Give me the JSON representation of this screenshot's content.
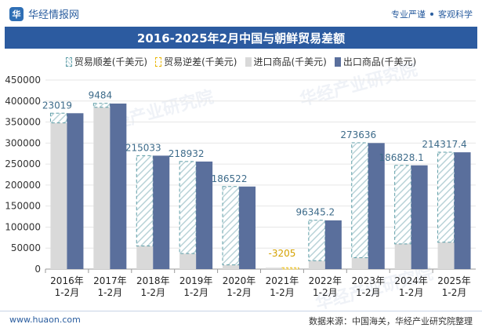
{
  "header": {
    "brand": "华经情报网",
    "logo_text": "华",
    "tags": [
      "专业严谨",
      "客观科学"
    ]
  },
  "watermark": "华经产业研究院",
  "chart_data": {
    "type": "bar",
    "title": "2016-2025年2月中国与朝鲜贸易差额",
    "categories": [
      "2016年\n1-2月",
      "2017年\n1-2月",
      "2018年\n1-2月",
      "2019年\n1-2月",
      "2020年\n1-2月",
      "2021年\n1-2月",
      "2022年\n1-2月",
      "2023年\n1-2月",
      "2024年\n1-2月",
      "2025年\n1-2月"
    ],
    "series": [
      {
        "name": "贸易顺差(千美元)",
        "values": [
          23019,
          9484,
          215033,
          218932,
          186522,
          null,
          96345.2,
          273636,
          186828.1,
          214317.4
        ],
        "labels": [
          "23019",
          "9484",
          "215033",
          "218932",
          "186522",
          "",
          "96345.2",
          "273636",
          "186828.1",
          "214317.4"
        ],
        "color": "#5f9ea7"
      },
      {
        "name": "贸易逆差(千美元)",
        "values": [
          null,
          null,
          null,
          null,
          null,
          3205,
          null,
          null,
          null,
          null
        ],
        "labels": [
          "",
          "",
          "",
          "",
          "",
          "-3205",
          "",
          "",
          "",
          ""
        ],
        "color": "#e8b500"
      },
      {
        "name": "进口商品(千美元)",
        "values": [
          348000,
          385000,
          55000,
          37000,
          10000,
          3300,
          20000,
          27000,
          60000,
          64000
        ],
        "color": "#d9d9d9"
      },
      {
        "name": "出口商品(千美元)",
        "values": [
          371000,
          394000,
          270000,
          256000,
          196500,
          100,
          116000,
          300000,
          247000,
          278000
        ],
        "color": "#5a6f9c"
      }
    ],
    "ylim": [
      0,
      450000
    ],
    "yticks": [
      "0",
      "50000",
      "100000",
      "150000",
      "200000",
      "250000",
      "300000",
      "350000",
      "400000",
      "450000"
    ],
    "legend_position": "top"
  },
  "footer": {
    "website": "www.huaon.com",
    "source": "数据来源：中国海关，华经产业研究院整理"
  }
}
